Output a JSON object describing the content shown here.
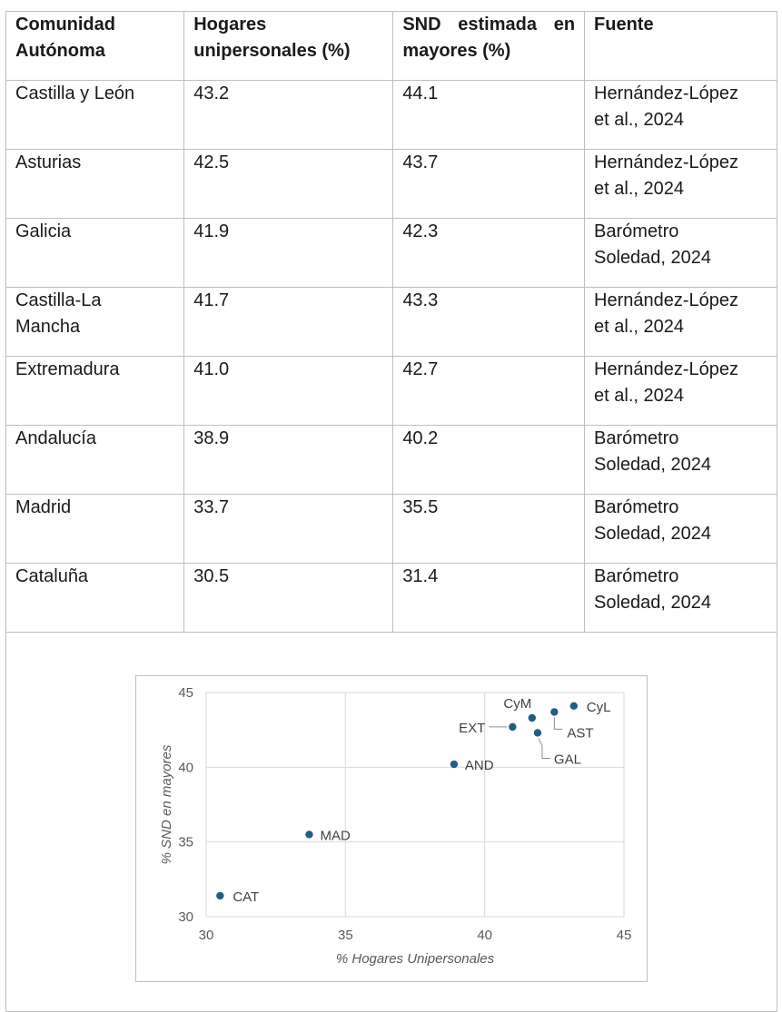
{
  "table": {
    "headers": [
      [
        "Comunidad",
        "Autónoma"
      ],
      [
        "Hogares",
        "unipersonales (%)"
      ],
      [
        "SND estimada en",
        "mayores (%)"
      ],
      [
        "Fuente"
      ]
    ],
    "rows": [
      {
        "region": [
          "Castilla y León"
        ],
        "hogares": "43.2",
        "snd": "44.1",
        "fuente": [
          "Hernández-López",
          "et al., 2024"
        ]
      },
      {
        "region": [
          "Asturias"
        ],
        "hogares": "42.5",
        "snd": "43.7",
        "fuente": [
          "Hernández-López",
          "et al., 2024"
        ]
      },
      {
        "region": [
          "Galicia"
        ],
        "hogares": "41.9",
        "snd": "42.3",
        "fuente": [
          "Barómetro",
          "Soledad, 2024"
        ]
      },
      {
        "region": [
          "Castilla-La",
          "Mancha"
        ],
        "hogares": "41.7",
        "snd": "43.3",
        "fuente": [
          "Hernández-López",
          "et al., 2024"
        ]
      },
      {
        "region": [
          "Extremadura"
        ],
        "hogares": "41.0",
        "snd": "42.7",
        "fuente": [
          "Hernández-López",
          "et al., 2024"
        ]
      },
      {
        "region": [
          "Andalucía"
        ],
        "hogares": "38.9",
        "snd": "40.2",
        "fuente": [
          "Barómetro",
          "Soledad, 2024"
        ]
      },
      {
        "region": [
          "Madrid"
        ],
        "hogares": "33.7",
        "snd": "35.5",
        "fuente": [
          "Barómetro",
          "Soledad, 2024"
        ]
      },
      {
        "region": [
          "Cataluña"
        ],
        "hogares": "30.5",
        "snd": "31.4",
        "fuente": [
          "Barómetro",
          "Soledad, 2024"
        ]
      }
    ]
  },
  "chart_data": {
    "type": "scatter",
    "xlabel": "% Hogares Unipersonales",
    "ylabel": "% SND en mayores",
    "xlim": [
      30,
      45
    ],
    "ylim": [
      30,
      45
    ],
    "xticks": [
      "30",
      "35",
      "40",
      "45"
    ],
    "yticks": [
      "30",
      "35",
      "40",
      "45"
    ],
    "grid": true,
    "point_color": "#1f5f7f",
    "points": [
      {
        "label": "CyL",
        "x": 43.2,
        "y": 44.1
      },
      {
        "label": "AST",
        "x": 42.5,
        "y": 43.7
      },
      {
        "label": "GAL",
        "x": 41.9,
        "y": 42.3
      },
      {
        "label": "CyM",
        "x": 41.7,
        "y": 43.3
      },
      {
        "label": "EXT",
        "x": 41.0,
        "y": 42.7
      },
      {
        "label": "AND",
        "x": 38.9,
        "y": 40.2
      },
      {
        "label": "MAD",
        "x": 33.7,
        "y": 35.5
      },
      {
        "label": "CAT",
        "x": 30.5,
        "y": 31.4
      }
    ]
  }
}
